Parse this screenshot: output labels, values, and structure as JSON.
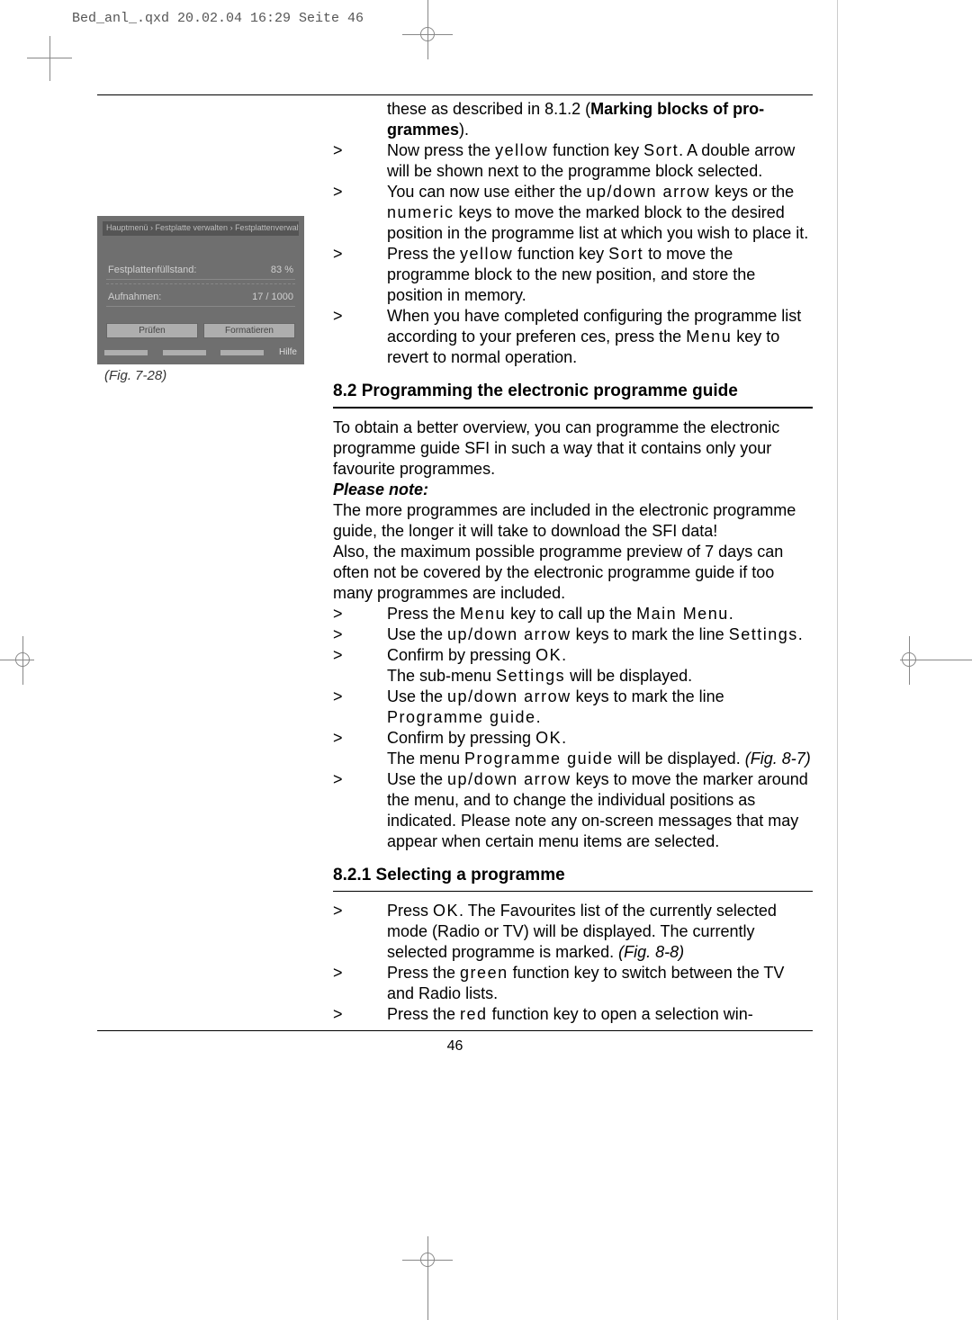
{
  "header": {
    "text": "Bed_anl_.qxd  20.02.04  16:29  Seite 46"
  },
  "figure": {
    "titlebar": "Hauptmenü › Festplatte verwalten › Festplattenverwaltung",
    "row1_label": "Festplattenfüllstand:",
    "row1_value": "83 %",
    "row2_label": "Aufnahmen:",
    "row2_value": "17 / 1000",
    "btn1": "Prüfen",
    "btn2": "Formatieren",
    "help": "Hilfe",
    "caption": "(Fig. 7-28)"
  },
  "intro": {
    "l1a": "these as described in 8.1.2 (",
    "l1b": "Marking blocks of pro-",
    "l2a": "grammes",
    "l2b": ")."
  },
  "steps1": [
    {
      "marker": ">",
      "text_parts": [
        "Now press the ",
        {
          "spaced": "yellow"
        },
        " function key ",
        {
          "spaced": "Sort"
        },
        ". A double arrow will be shown next to the programme block selected."
      ]
    },
    {
      "marker": ">",
      "text_parts": [
        "You can now use either the ",
        {
          "spaced": "up/down arrow"
        },
        " keys or the ",
        {
          "spaced": "numeric"
        },
        " keys to move the marked block to the desired position in the programme list at which you wish to place it."
      ]
    },
    {
      "marker": ">",
      "text_parts": [
        "Press the ",
        {
          "spaced": "yellow"
        },
        " function key ",
        {
          "spaced": "Sort"
        },
        " to move the programme block to the new position, and store the position in memory."
      ]
    },
    {
      "marker": ">",
      "text_parts": [
        "When you have completed configuring the programme list according to your preferen ces, press the ",
        {
          "spaced": "Menu"
        },
        " key to revert to normal operation."
      ]
    }
  ],
  "sec82": {
    "title": "8.2 Programming the electronic programme guide",
    "p1": "To obtain a better overview, you can programme the electronic programme guide SFI in such a way that it contains only your favourite programmes.",
    "note_label": "Please note:",
    "p2": "The more programmes are included in the electronic programme guide, the longer it will take to download the SFI data!",
    "p3": "Also, the maximum possible programme preview of 7 days can often not be covered by the electronic programme guide if too many programmes are included."
  },
  "steps2": [
    {
      "marker": ">",
      "text_parts": [
        "Press the ",
        {
          "spaced": "Menu"
        },
        " key to call up the ",
        {
          "spaced": "Main Menu"
        },
        "."
      ]
    },
    {
      "marker": ">",
      "text_parts": [
        "Use the ",
        {
          "spaced": "up/down arrow"
        },
        " keys to mark the line ",
        {
          "spaced": "Settings"
        },
        "."
      ]
    },
    {
      "marker": ">",
      "text_parts": [
        "Confirm by pressing ",
        {
          "spaced": "OK"
        },
        ".",
        {
          "br": true
        },
        "The sub-menu ",
        {
          "spaced": "Settings"
        },
        " will be displayed."
      ]
    },
    {
      "marker": ">",
      "text_parts": [
        "Use the ",
        {
          "spaced": "up/down arrow"
        },
        " keys to mark the line ",
        {
          "spaced": "Programme guide"
        },
        "."
      ]
    },
    {
      "marker": ">",
      "text_parts": [
        "Confirm by pressing ",
        {
          "spaced": "OK"
        },
        ".",
        {
          "br": true
        },
        "The menu ",
        {
          "spaced": "Programme guide"
        },
        " will be displayed. ",
        {
          "italic": "(Fig. 8-7)"
        }
      ]
    },
    {
      "marker": ">",
      "text_parts": [
        "Use the ",
        {
          "spaced": "up/down arrow"
        },
        " keys to move the marker around the menu, and to change the individual positions as indicated. Please note any on-screen messages that may appear when certain menu items are selected."
      ]
    }
  ],
  "sec821": {
    "title": "8.2.1 Selecting a programme"
  },
  "steps3": [
    {
      "marker": ">",
      "text_parts": [
        "Press ",
        {
          "spaced": "OK"
        },
        ". The Favourites list of the currently selected mode (Radio or TV) will be displayed. The currently selected programme is marked. ",
        {
          "italic": "(Fig. 8-8)"
        }
      ]
    },
    {
      "marker": ">",
      "text_parts": [
        "Press the ",
        {
          "spaced": "green"
        },
        " function key to switch between the TV and Radio lists."
      ]
    },
    {
      "marker": ">",
      "text_parts": [
        "Press the ",
        {
          "spaced": "red"
        },
        " function key to open a selection win-"
      ]
    }
  ],
  "page_number": "46"
}
